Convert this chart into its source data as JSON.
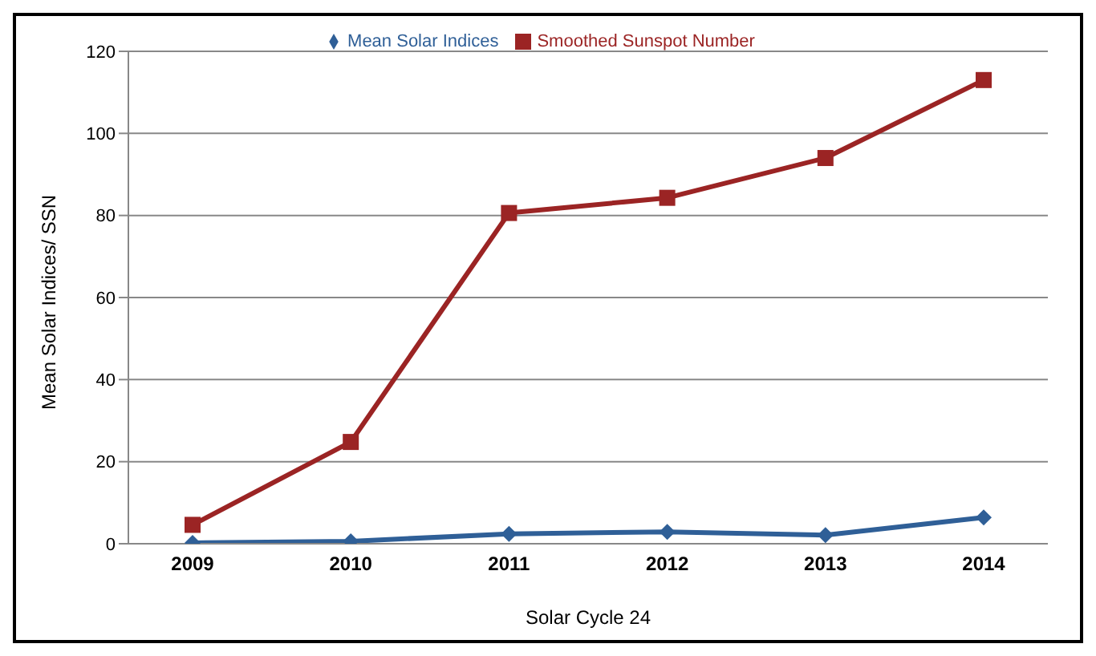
{
  "chart_data": {
    "type": "line",
    "xlabel": "Solar Cycle 24",
    "ylabel": "Mean Solar Indices/ SSN",
    "categories": [
      "2009",
      "2010",
      "2011",
      "2012",
      "2013",
      "2014"
    ],
    "series": [
      {
        "name": "Mean Solar Indices",
        "color": "#2f5f97",
        "marker": "diamond",
        "values": [
          0.2,
          0.6,
          2.4,
          2.9,
          2.1,
          6.4
        ]
      },
      {
        "name": "Smoothed Sunspot Number",
        "color": "#9b2424",
        "marker": "square",
        "values": [
          4.6,
          24.8,
          80.6,
          84.3,
          94,
          113
        ]
      }
    ],
    "ylim": [
      0,
      120
    ],
    "yticks": [
      0,
      20,
      40,
      60,
      80,
      100,
      120
    ],
    "grid": "y",
    "legend": "top"
  }
}
